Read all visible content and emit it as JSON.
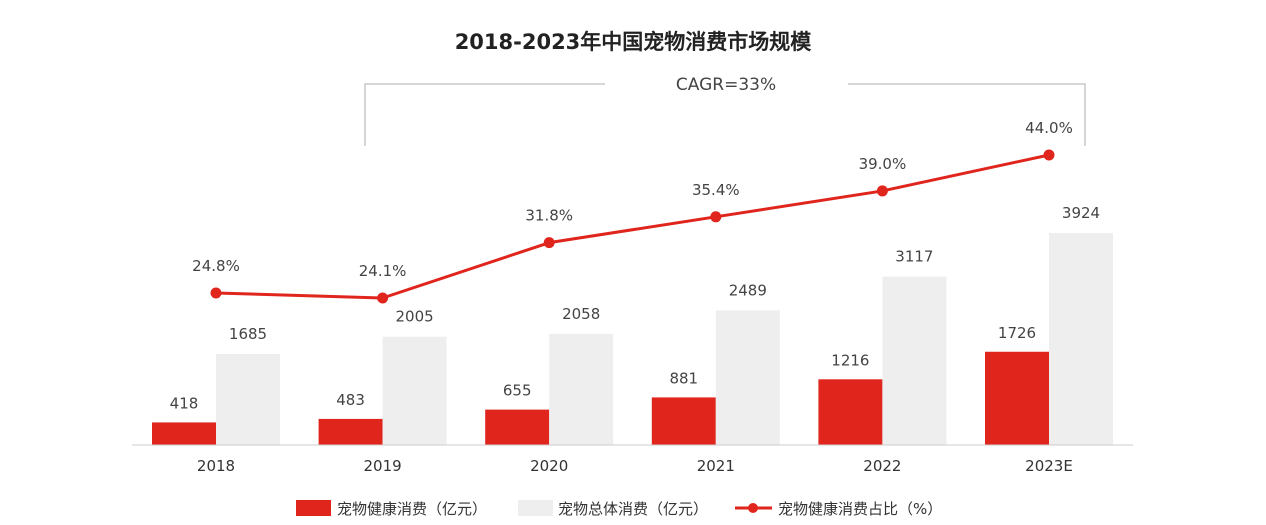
{
  "chart_data": {
    "type": "bar+line",
    "title": "2018-2023年中国宠物消费市场规模",
    "annotation": "CAGR=33%",
    "categories": [
      "2018",
      "2019",
      "2020",
      "2021",
      "2022",
      "2023E"
    ],
    "series": [
      {
        "name": "宠物健康消费（亿元）",
        "type": "bar",
        "color": "#e0251d",
        "values": [
          418,
          483,
          655,
          881,
          1216,
          1726
        ]
      },
      {
        "name": "宠物总体消费（亿元）",
        "type": "bar",
        "color": "#eeeeee",
        "values": [
          1685,
          2005,
          2058,
          2489,
          3117,
          3924
        ]
      },
      {
        "name": "宠物健康消费占比（%）",
        "type": "line",
        "color": "#e0251d",
        "values": [
          24.8,
          24.1,
          31.8,
          35.4,
          39.0,
          44.0
        ],
        "labels": [
          "24.8%",
          "24.1%",
          "31.8%",
          "35.4%",
          "39.0%",
          "44.0%"
        ]
      }
    ],
    "grid": false,
    "legend_position": "bottom"
  }
}
